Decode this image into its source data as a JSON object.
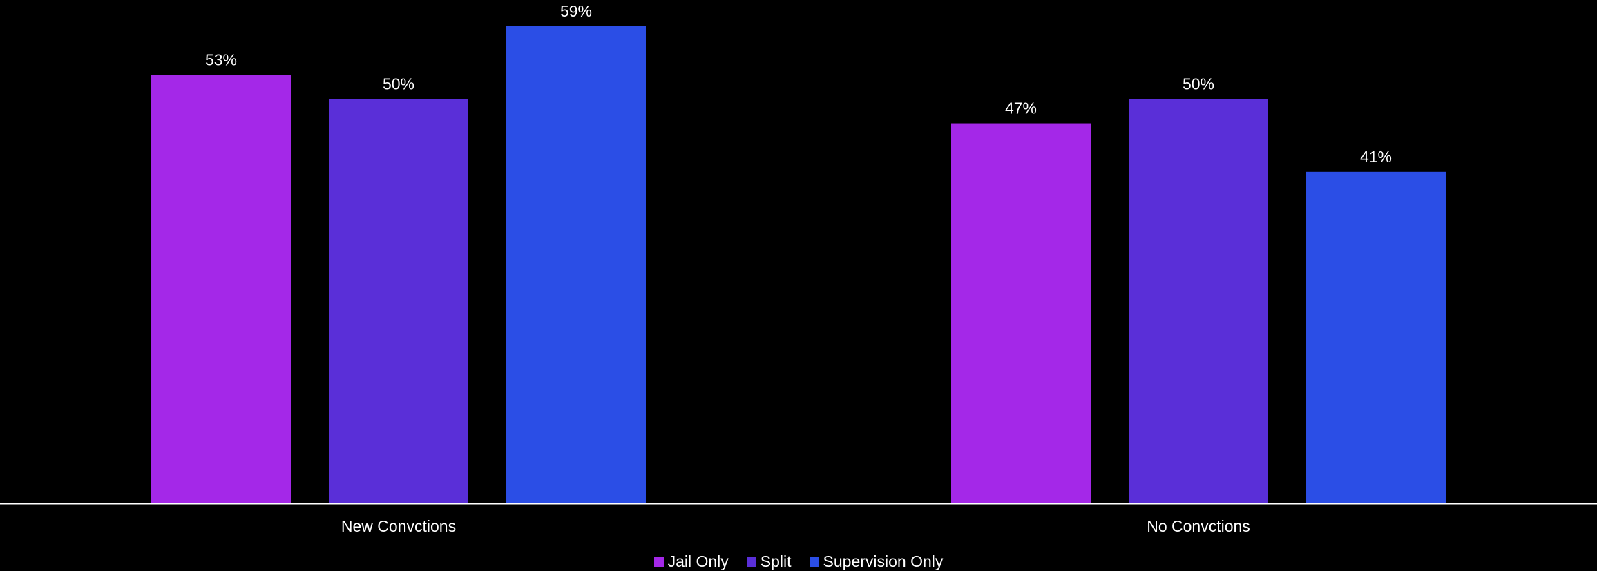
{
  "chart_data": {
    "type": "bar",
    "categories": [
      "New Convctions",
      "No Convctions"
    ],
    "series": [
      {
        "name": "Jail Only",
        "values": [
          53,
          47
        ],
        "labels": [
          "53%",
          "47%"
        ],
        "color": "#a428e8"
      },
      {
        "name": "Split",
        "values": [
          50,
          50
        ],
        "labels": [
          "50%",
          "50%"
        ],
        "color": "#5a2fd8"
      },
      {
        "name": "Supervision Only",
        "values": [
          59,
          41
        ],
        "labels": [
          "59%",
          "41%"
        ],
        "color": "#2b4ee6"
      }
    ],
    "title": "",
    "xlabel": "",
    "ylabel": "",
    "ylim": [
      0,
      59
    ],
    "grid": false,
    "legend_position": "bottom-center",
    "background": "#000000",
    "axis_color": "#ffffff"
  }
}
